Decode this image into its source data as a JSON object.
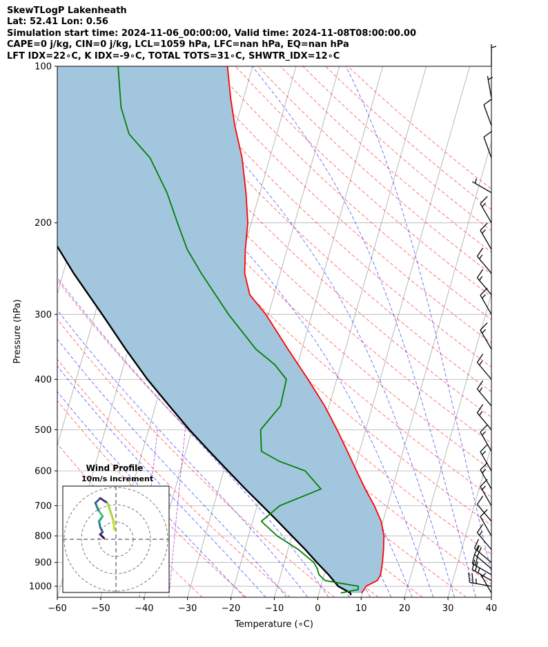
{
  "header": {
    "line1": "SkewTLogP Lakenheath",
    "line2": "Lat: 52.41   Lon: 0.56",
    "line3": "Simulation start time: 2024-11-06_00:00:00, Valid time: 2024-11-08T08:00:00.00",
    "line4": "CAPE=0 j/kg, CIN=0 j/kg, LCL=1059 hPa, LFC=nan hPa, EQ=nan hPa",
    "line5": "LFT IDX=22∘C, K IDX=-9∘C, TOTAL TOTS=31∘C, SHWTR_IDX=12∘C"
  },
  "colors": {
    "temperature": "#ff0000",
    "dewpoint": "#008000",
    "parcel": "#000000",
    "cape_fill": "#a3c6df",
    "dry_adiabat": "#ff0000",
    "moist_adiabat": "#0000ff",
    "isotherm": "#808080",
    "mixing_ratio": "#9400d3"
  },
  "chart_data": {
    "type": "skew-t",
    "xlabel": "Temperature (∘C)",
    "ylabel": "Pressure (hPa)",
    "xlim": [
      -60,
      40
    ],
    "ylim": [
      1050,
      100
    ],
    "x_ticks": [
      "−60",
      "−50",
      "−40",
      "−30",
      "−20",
      "−10",
      "0",
      "10",
      "20",
      "30",
      "40"
    ],
    "y_ticks": [
      "100",
      "200",
      "300",
      "400",
      "500",
      "600",
      "700",
      "800",
      "900",
      "1000"
    ],
    "temperature_profile": [
      {
        "p": 1030,
        "t": 9.8
      },
      {
        "p": 1015,
        "t": 10.2
      },
      {
        "p": 1000,
        "t": 10.4
      },
      {
        "p": 975,
        "t": 12.6
      },
      {
        "p": 950,
        "t": 13.0
      },
      {
        "p": 900,
        "t": 12.6
      },
      {
        "p": 850,
        "t": 12.0
      },
      {
        "p": 800,
        "t": 11.2
      },
      {
        "p": 750,
        "t": 9.6
      },
      {
        "p": 700,
        "t": 7.0
      },
      {
        "p": 650,
        "t": 3.8
      },
      {
        "p": 600,
        "t": 0.6
      },
      {
        "p": 550,
        "t": -2.8
      },
      {
        "p": 500,
        "t": -6.6
      },
      {
        "p": 450,
        "t": -11.0
      },
      {
        "p": 400,
        "t": -16.6
      },
      {
        "p": 350,
        "t": -23.2
      },
      {
        "p": 300,
        "t": -30.6
      },
      {
        "p": 275,
        "t": -35.6
      },
      {
        "p": 250,
        "t": -38.2
      },
      {
        "p": 225,
        "t": -39.6
      },
      {
        "p": 200,
        "t": -40.8
      },
      {
        "p": 175,
        "t": -43.2
      },
      {
        "p": 150,
        "t": -46.4
      },
      {
        "p": 130,
        "t": -50.2
      },
      {
        "p": 115,
        "t": -53.0
      },
      {
        "p": 100,
        "t": -55.8
      }
    ],
    "dewpoint_profile": [
      {
        "p": 1030,
        "t": 5.0
      },
      {
        "p": 1015,
        "t": 8.8
      },
      {
        "p": 1000,
        "t": 8.6
      },
      {
        "p": 975,
        "t": 0.6
      },
      {
        "p": 950,
        "t": -1.2
      },
      {
        "p": 925,
        "t": -2.0
      },
      {
        "p": 900,
        "t": -3.2
      },
      {
        "p": 850,
        "t": -7.6
      },
      {
        "p": 800,
        "t": -13.4
      },
      {
        "p": 750,
        "t": -18.0
      },
      {
        "p": 700,
        "t": -14.8
      },
      {
        "p": 650,
        "t": -6.4
      },
      {
        "p": 600,
        "t": -11.2
      },
      {
        "p": 575,
        "t": -17.8
      },
      {
        "p": 550,
        "t": -22.6
      },
      {
        "p": 500,
        "t": -24.2
      },
      {
        "p": 450,
        "t": -21.2
      },
      {
        "p": 400,
        "t": -21.6
      },
      {
        "p": 375,
        "t": -25.2
      },
      {
        "p": 350,
        "t": -30.6
      },
      {
        "p": 300,
        "t": -39.2
      },
      {
        "p": 250,
        "t": -48.2
      },
      {
        "p": 225,
        "t": -53.0
      },
      {
        "p": 200,
        "t": -57.0
      },
      {
        "p": 175,
        "t": -61.4
      },
      {
        "p": 150,
        "t": -67.6
      },
      {
        "p": 135,
        "t": -74.0
      },
      {
        "p": 120,
        "t": -77.6
      },
      {
        "p": 100,
        "t": -81.0
      }
    ],
    "parcel_profile": [
      {
        "p": 1040,
        "t": 7.5
      },
      {
        "p": 1030,
        "t": 7.2
      },
      {
        "p": 1000,
        "t": 4.0
      },
      {
        "p": 950,
        "t": 1.0
      },
      {
        "p": 900,
        "t": -2.5
      },
      {
        "p": 850,
        "t": -6.0
      },
      {
        "p": 800,
        "t": -10.0
      },
      {
        "p": 750,
        "t": -14.2
      },
      {
        "p": 700,
        "t": -18.8
      },
      {
        "p": 650,
        "t": -23.8
      },
      {
        "p": 600,
        "t": -29.0
      },
      {
        "p": 550,
        "t": -34.6
      },
      {
        "p": 500,
        "t": -40.6
      },
      {
        "p": 450,
        "t": -46.8
      },
      {
        "p": 400,
        "t": -53.6
      },
      {
        "p": 350,
        "t": -60.6
      },
      {
        "p": 300,
        "t": -68.3
      },
      {
        "p": 250,
        "t": -77.6
      },
      {
        "p": 200,
        "t": -88.0
      },
      {
        "p": 150,
        "t": -100.6
      },
      {
        "p": 100,
        "t": -118.5
      }
    ],
    "winds": [
      {
        "p": 1030,
        "speed_kt": 5,
        "dir": 330
      },
      {
        "p": 1000,
        "speed_kt": 25,
        "dir": 280
      },
      {
        "p": 975,
        "speed_kt": 25,
        "dir": 300
      },
      {
        "p": 950,
        "speed_kt": 20,
        "dir": 300
      },
      {
        "p": 925,
        "speed_kt": 20,
        "dir": 310
      },
      {
        "p": 900,
        "speed_kt": 15,
        "dir": 310
      },
      {
        "p": 850,
        "speed_kt": 15,
        "dir": 320
      },
      {
        "p": 800,
        "speed_kt": 10,
        "dir": 330
      },
      {
        "p": 750,
        "speed_kt": 10,
        "dir": 320
      },
      {
        "p": 700,
        "speed_kt": 15,
        "dir": 330
      },
      {
        "p": 650,
        "speed_kt": 15,
        "dir": 330
      },
      {
        "p": 600,
        "speed_kt": 15,
        "dir": 330
      },
      {
        "p": 550,
        "speed_kt": 15,
        "dir": 330
      },
      {
        "p": 500,
        "speed_kt": 15,
        "dir": 320
      },
      {
        "p": 450,
        "speed_kt": 15,
        "dir": 320
      },
      {
        "p": 400,
        "speed_kt": 15,
        "dir": 320
      },
      {
        "p": 350,
        "speed_kt": 15,
        "dir": 330
      },
      {
        "p": 300,
        "speed_kt": 15,
        "dir": 330
      },
      {
        "p": 275,
        "speed_kt": 15,
        "dir": 320
      },
      {
        "p": 250,
        "speed_kt": 15,
        "dir": 320
      },
      {
        "p": 225,
        "speed_kt": 15,
        "dir": 330
      },
      {
        "p": 200,
        "speed_kt": 15,
        "dir": 330
      },
      {
        "p": 175,
        "speed_kt": 5,
        "dir": 300
      },
      {
        "p": 150,
        "speed_kt": 10,
        "dir": 340
      },
      {
        "p": 130,
        "speed_kt": 10,
        "dir": 340
      },
      {
        "p": 115,
        "speed_kt": 5,
        "dir": 350
      },
      {
        "p": 100,
        "speed_kt": 5,
        "dir": 0
      }
    ],
    "hodograph": {
      "title": "Wind Profile",
      "subtitle": "10m/s increment",
      "points": [
        {
          "u": -2.0,
          "v": 0.2,
          "c": "#440154"
        },
        {
          "u": -2.6,
          "v": 0.8,
          "c": "#440154"
        },
        {
          "u": -2.2,
          "v": 1.2,
          "c": "#46327e"
        },
        {
          "u": -2.6,
          "v": 2.0,
          "c": "#365c8d"
        },
        {
          "u": -2.8,
          "v": 3.0,
          "c": "#277f8e"
        },
        {
          "u": -2.2,
          "v": 3.8,
          "c": "#1fa187"
        },
        {
          "u": -2.9,
          "v": 4.8,
          "c": "#4ac16d"
        },
        {
          "u": -3.4,
          "v": 6.0,
          "c": "#277f8e"
        },
        {
          "u": -2.6,
          "v": 6.8,
          "c": "#365c8d"
        },
        {
          "u": -1.4,
          "v": 6.0,
          "c": "#46327e"
        },
        {
          "u": -0.9,
          "v": 4.6,
          "c": "#a0da39"
        },
        {
          "u": -0.4,
          "v": 3.0,
          "c": "#a0da39"
        },
        {
          "u": -0.3,
          "v": 1.6,
          "c": "#c8e020"
        }
      ]
    }
  }
}
